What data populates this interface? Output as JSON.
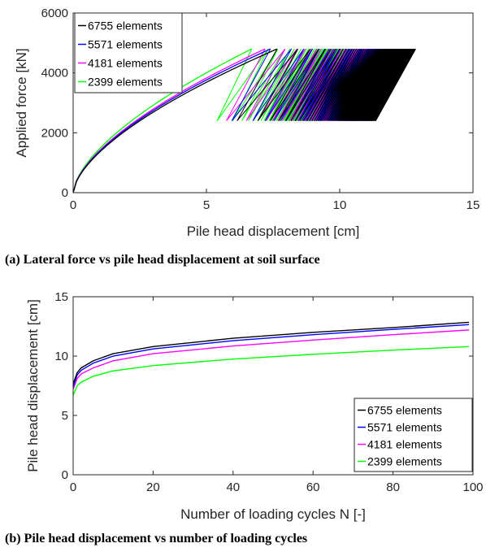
{
  "colors": {
    "6755 elements": "#000000",
    "5571 elements": "#0000ff",
    "4181 elements": "#ff00ff",
    "2399 elements": "#00ff00"
  },
  "chart_data": [
    {
      "type": "line",
      "xlabel": "Pile head displacement [cm]",
      "ylabel": "Applied force [kN]",
      "xlim": [
        0,
        15
      ],
      "ylim": [
        0,
        6000
      ],
      "xticks": [
        "0",
        "5",
        "10",
        "15"
      ],
      "yticks": [
        "0",
        "2000",
        "4000",
        "6000"
      ],
      "legend_position": "top-left",
      "caption": "(a) Lateral force vs pile head displacement at soil surface",
      "series": [
        {
          "name": "6755 elements",
          "first_loading_end": 7.65,
          "first_unload_end": 6.15,
          "final_upper": 12.85,
          "final_lower": 11.35
        },
        {
          "name": "5571 elements",
          "first_loading_end": 7.4,
          "first_unload_end": 5.95,
          "final_upper": 12.65,
          "final_lower": 11.2
        },
        {
          "name": "4181 elements",
          "first_loading_end": 7.2,
          "first_unload_end": 5.75,
          "final_upper": 12.2,
          "final_lower": 10.7
        },
        {
          "name": "2399 elements",
          "first_loading_end": 6.7,
          "first_unload_end": 5.4,
          "final_upper": 10.8,
          "final_lower": 9.3
        }
      ],
      "force_max": 4800,
      "force_min": 2400
    },
    {
      "type": "line",
      "xlabel": "Number of loading cycles N [-]",
      "ylabel": "Pile head displacement [cm]",
      "xlim": [
        0,
        100
      ],
      "ylim": [
        0,
        15
      ],
      "xticks": [
        "0",
        "20",
        "40",
        "60",
        "80",
        "100"
      ],
      "yticks": [
        "0",
        "5",
        "10",
        "15"
      ],
      "legend_position": "bottom-right",
      "caption": "(b) Pile head displacement vs number of loading cycles",
      "x": [
        0,
        1,
        2,
        5,
        10,
        20,
        40,
        60,
        80,
        99
      ],
      "series": [
        {
          "name": "6755 elements",
          "values": [
            7.65,
            8.6,
            9.0,
            9.6,
            10.2,
            10.8,
            11.5,
            12.0,
            12.4,
            12.85
          ]
        },
        {
          "name": "5571 elements",
          "values": [
            7.4,
            8.4,
            8.8,
            9.4,
            10.0,
            10.6,
            11.3,
            11.8,
            12.25,
            12.65
          ]
        },
        {
          "name": "4181 elements",
          "values": [
            7.2,
            8.1,
            8.5,
            9.0,
            9.6,
            10.2,
            10.85,
            11.35,
            11.8,
            12.2
          ]
        },
        {
          "name": "2399 elements",
          "values": [
            6.7,
            7.5,
            7.8,
            8.3,
            8.75,
            9.2,
            9.75,
            10.15,
            10.5,
            10.8
          ]
        }
      ]
    }
  ]
}
